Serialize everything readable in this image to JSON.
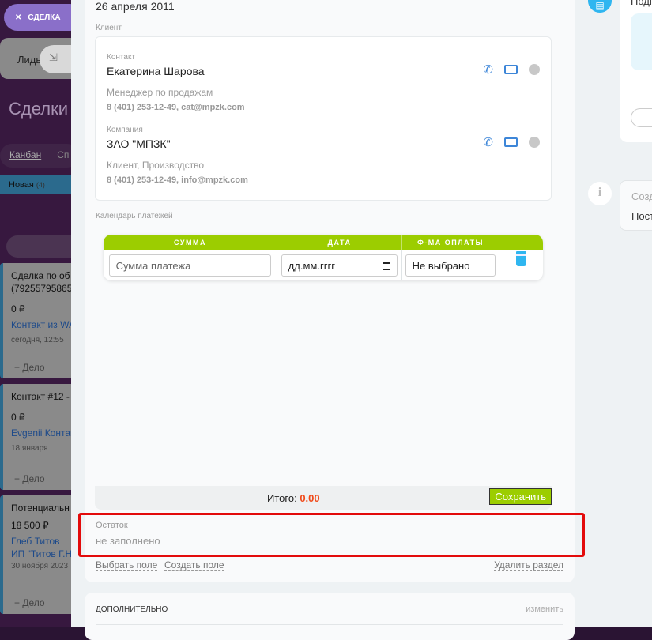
{
  "left": {
    "deal_pill": "СДЕЛКА",
    "leads_tab": "Лиды",
    "page_title": "Сделки",
    "view_tabs": [
      "Канбан",
      "Сп"
    ],
    "stage": {
      "name": "Новая",
      "count": "(4)",
      "color": "#2b6a8d"
    },
    "cards": [
      {
        "title": "Сделка по об (79255795865",
        "amount": "0 ₽",
        "contact": "Контакт из WA",
        "date": "сегодня, 12:55",
        "action": "+ Дело"
      },
      {
        "title": "Контакт #12 -",
        "amount": "0 ₽",
        "contact": "Evgenii Контак",
        "date": "18 января",
        "action": "+ Дело"
      },
      {
        "title": "Потенциальн",
        "amount": "18 500 ₽",
        "contact": "Глеб Титов",
        "company": "ИП \"Титов Г.Н",
        "date": "30 ноября 2023",
        "action": "+ Дело"
      }
    ]
  },
  "main": {
    "date": "26 апреля 2011",
    "client_label": "Клиент",
    "contact": {
      "label": "Контакт",
      "name": "Екатерина Шарова",
      "role": "Менеджер по продажам",
      "phone_email": "8 (401) 253-12-49, cat@mpzk.com"
    },
    "company": {
      "label": "Компания",
      "name": "ЗАО \"МПЗК\"",
      "role": "Клиент, Производство",
      "phone_email": "8 (401) 253-12-49, info@mpzk.com"
    },
    "icons": [
      "phone-icon",
      "mail-icon",
      "chat-icon"
    ],
    "payments": {
      "label": "Календарь платежей",
      "headers": [
        "СУММА",
        "ДАТА",
        "Ф-МА ОПЛАТЫ"
      ],
      "amount_placeholder": "Сумма платежа",
      "date_placeholder": "дд.мм.гггг",
      "method_value": "Не выбрано",
      "total_label": "Итого:",
      "total_value": "0.00",
      "save": "Сохранить",
      "accent": "#9ccd00",
      "delete_color": "#2fb6f0"
    },
    "remainder": {
      "label": "Остаток",
      "value": "не заполнено"
    },
    "actions": {
      "select": "Выбрать поле",
      "create": "Создать поле",
      "delete": "Удалить раздел"
    },
    "extra": {
      "title": "ДОПОЛНИТЕЛЬНО",
      "edit": "изменить"
    }
  },
  "timeline": {
    "item1_title": "Подп",
    "item2_title": "Созд",
    "item2_text": "Пост"
  }
}
